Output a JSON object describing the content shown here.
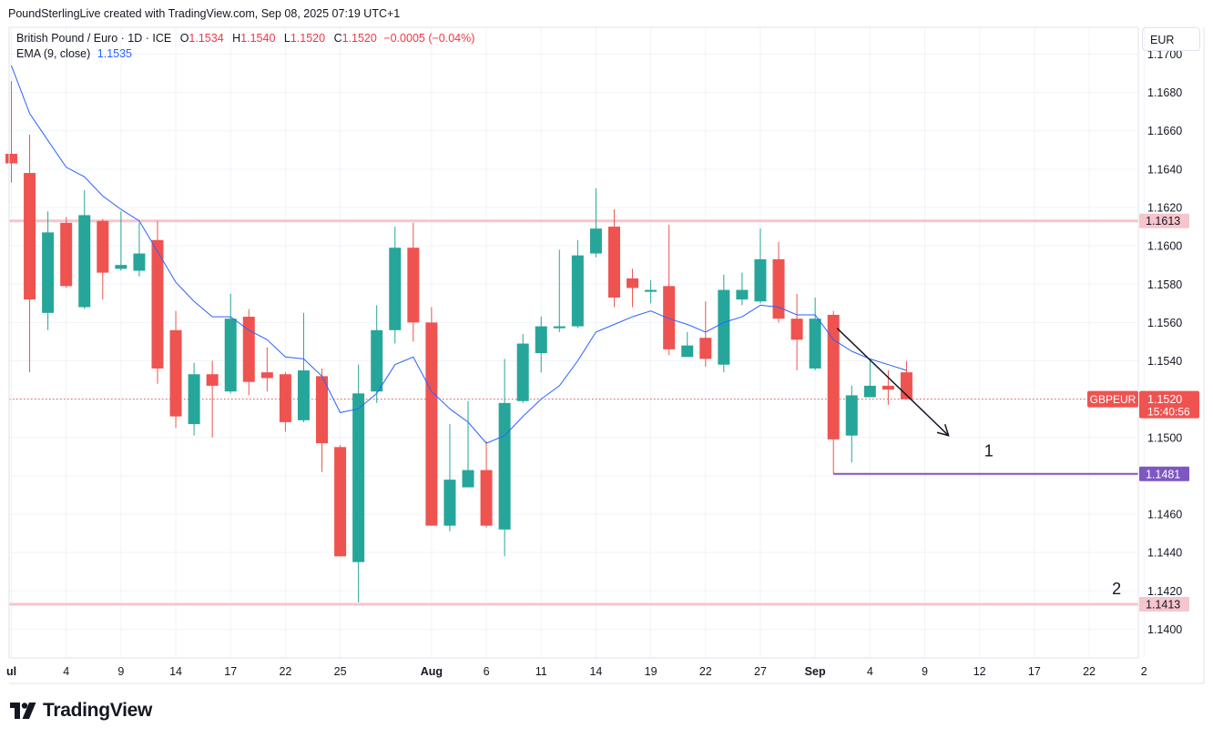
{
  "header": {
    "credit": "PoundSterlingLive created with TradingView.com, Sep 08, 2025 07:19 UTC+1",
    "symbol_desc": "British Pound / Euro · 1D · ICE",
    "ohlc": {
      "o_label": "O",
      "o": "1.1534",
      "h_label": "H",
      "h": "1.1540",
      "l_label": "L",
      "l": "1.1520",
      "c_label": "C",
      "c": "1.1520",
      "change": "−0.0005 (−0.04%)"
    },
    "indicator_label": "EMA (9, close)",
    "indicator_value": "1.1535",
    "currency": "EUR"
  },
  "logo": {
    "text": "TradingView"
  },
  "colors": {
    "up": "#26a69a",
    "down": "#ef5350",
    "ema": "#2962ff",
    "resistance": "#f7c5cc",
    "support_line": "#7e57c2",
    "grid": "#f0f3fa",
    "axis_text": "#131722"
  },
  "chart_data": {
    "type": "candlestick",
    "y_range": [
      1.1385,
      1.1714
    ],
    "y_ticks": [
      "1.1700",
      "1.1680",
      "1.1660",
      "1.1640",
      "1.1620",
      "1.1600",
      "1.1580",
      "1.1560",
      "1.1540",
      "1.1520",
      "1.1500",
      "1.1480",
      "1.1460",
      "1.1440",
      "1.1420",
      "1.1400"
    ],
    "x_ticks": [
      {
        "index": 0,
        "label": "ul",
        "bold": true
      },
      {
        "index": 3,
        "label": "4"
      },
      {
        "index": 6,
        "label": "9"
      },
      {
        "index": 9,
        "label": "14"
      },
      {
        "index": 12,
        "label": "17"
      },
      {
        "index": 15,
        "label": "22"
      },
      {
        "index": 18,
        "label": "25"
      },
      {
        "index": 23,
        "label": "Aug",
        "bold": true
      },
      {
        "index": 26,
        "label": "6"
      },
      {
        "index": 29,
        "label": "11"
      },
      {
        "index": 32,
        "label": "14"
      },
      {
        "index": 35,
        "label": "19"
      },
      {
        "index": 38,
        "label": "22"
      },
      {
        "index": 41,
        "label": "27"
      },
      {
        "index": 44,
        "label": "Sep",
        "bold": true
      },
      {
        "index": 47,
        "label": "4"
      },
      {
        "index": 50,
        "label": "9"
      },
      {
        "index": 53,
        "label": "12"
      },
      {
        "index": 56,
        "label": "17"
      },
      {
        "index": 59,
        "label": "22"
      },
      {
        "index": 62,
        "label": "2"
      }
    ],
    "candles": [
      {
        "o": 1.1648,
        "h": 1.1686,
        "l": 1.1633,
        "c": 1.1643
      },
      {
        "o": 1.1638,
        "h": 1.1658,
        "l": 1.1534,
        "c": 1.1572
      },
      {
        "o": 1.1565,
        "h": 1.1618,
        "l": 1.1556,
        "c": 1.1607
      },
      {
        "o": 1.1612,
        "h": 1.1615,
        "l": 1.1578,
        "c": 1.1579
      },
      {
        "o": 1.1568,
        "h": 1.1629,
        "l": 1.1567,
        "c": 1.1616
      },
      {
        "o": 1.1613,
        "h": 1.1614,
        "l": 1.1572,
        "c": 1.1586
      },
      {
        "o": 1.1588,
        "h": 1.1618,
        "l": 1.1587,
        "c": 1.159
      },
      {
        "o": 1.1587,
        "h": 1.1612,
        "l": 1.1584,
        "c": 1.1596
      },
      {
        "o": 1.1603,
        "h": 1.1613,
        "l": 1.1528,
        "c": 1.1536
      },
      {
        "o": 1.1556,
        "h": 1.1566,
        "l": 1.1505,
        "c": 1.1511
      },
      {
        "o": 1.1507,
        "h": 1.1539,
        "l": 1.1501,
        "c": 1.1533
      },
      {
        "o": 1.1533,
        "h": 1.154,
        "l": 1.15,
        "c": 1.1527
      },
      {
        "o": 1.1524,
        "h": 1.1575,
        "l": 1.1523,
        "c": 1.1562
      },
      {
        "o": 1.1563,
        "h": 1.1567,
        "l": 1.1522,
        "c": 1.1529
      },
      {
        "o": 1.1534,
        "h": 1.1547,
        "l": 1.1524,
        "c": 1.1531
      },
      {
        "o": 1.1533,
        "h": 1.1534,
        "l": 1.1503,
        "c": 1.1508
      },
      {
        "o": 1.1509,
        "h": 1.1565,
        "l": 1.1508,
        "c": 1.1535
      },
      {
        "o": 1.1532,
        "h": 1.1536,
        "l": 1.1482,
        "c": 1.1497
      },
      {
        "o": 1.1495,
        "h": 1.1496,
        "l": 1.1438,
        "c": 1.1438
      },
      {
        "o": 1.1435,
        "h": 1.1538,
        "l": 1.1414,
        "c": 1.1523
      },
      {
        "o": 1.1524,
        "h": 1.1569,
        "l": 1.1518,
        "c": 1.1556
      },
      {
        "o": 1.1556,
        "h": 1.161,
        "l": 1.1549,
        "c": 1.1599
      },
      {
        "o": 1.1599,
        "h": 1.1612,
        "l": 1.155,
        "c": 1.156
      },
      {
        "o": 1.156,
        "h": 1.1568,
        "l": 1.1454,
        "c": 1.1454
      },
      {
        "o": 1.1454,
        "h": 1.1507,
        "l": 1.1451,
        "c": 1.1478
      },
      {
        "o": 1.1474,
        "h": 1.1519,
        "l": 1.1474,
        "c": 1.1483
      },
      {
        "o": 1.1483,
        "h": 1.1498,
        "l": 1.1453,
        "c": 1.1454
      },
      {
        "o": 1.1452,
        "h": 1.1541,
        "l": 1.1438,
        "c": 1.1518
      },
      {
        "o": 1.1519,
        "h": 1.1554,
        "l": 1.1518,
        "c": 1.1549
      },
      {
        "o": 1.1544,
        "h": 1.1563,
        "l": 1.1534,
        "c": 1.1558
      },
      {
        "o": 1.1557,
        "h": 1.1598,
        "l": 1.1555,
        "c": 1.1558
      },
      {
        "o": 1.1558,
        "h": 1.1603,
        "l": 1.1557,
        "c": 1.1595
      },
      {
        "o": 1.1596,
        "h": 1.163,
        "l": 1.1594,
        "c": 1.1609
      },
      {
        "o": 1.161,
        "h": 1.1619,
        "l": 1.1568,
        "c": 1.1573
      },
      {
        "o": 1.1583,
        "h": 1.1588,
        "l": 1.1568,
        "c": 1.1578
      },
      {
        "o": 1.1576,
        "h": 1.1582,
        "l": 1.157,
        "c": 1.1577
      },
      {
        "o": 1.1579,
        "h": 1.1611,
        "l": 1.1543,
        "c": 1.1546
      },
      {
        "o": 1.1542,
        "h": 1.1555,
        "l": 1.1542,
        "c": 1.1548
      },
      {
        "o": 1.1552,
        "h": 1.1571,
        "l": 1.1537,
        "c": 1.1541
      },
      {
        "o": 1.1538,
        "h": 1.1585,
        "l": 1.1534,
        "c": 1.1577
      },
      {
        "o": 1.1572,
        "h": 1.1586,
        "l": 1.1569,
        "c": 1.1577
      },
      {
        "o": 1.1571,
        "h": 1.1609,
        "l": 1.157,
        "c": 1.1593
      },
      {
        "o": 1.1593,
        "h": 1.1602,
        "l": 1.156,
        "c": 1.1562
      },
      {
        "o": 1.1562,
        "h": 1.1575,
        "l": 1.1535,
        "c": 1.1551
      },
      {
        "o": 1.1536,
        "h": 1.1573,
        "l": 1.1535,
        "c": 1.1562
      },
      {
        "o": 1.1564,
        "h": 1.1566,
        "l": 1.1481,
        "c": 1.1499
      },
      {
        "o": 1.1501,
        "h": 1.1527,
        "l": 1.1487,
        "c": 1.1522
      },
      {
        "o": 1.1521,
        "h": 1.1541,
        "l": 1.1521,
        "c": 1.1527
      },
      {
        "o": 1.1527,
        "h": 1.1535,
        "l": 1.1517,
        "c": 1.1525
      },
      {
        "o": 1.1534,
        "h": 1.154,
        "l": 1.152,
        "c": 1.152
      }
    ],
    "ema": [
      1.1694,
      1.1669,
      1.1655,
      1.1641,
      1.1636,
      1.1626,
      1.1619,
      1.1613,
      1.1597,
      1.1581,
      1.1571,
      1.1563,
      1.1563,
      1.1556,
      1.1551,
      1.1542,
      1.1541,
      1.1532,
      1.1513,
      1.1515,
      1.1523,
      1.1538,
      1.1542,
      1.1524,
      1.1515,
      1.1508,
      1.1497,
      1.1501,
      1.1511,
      1.152,
      1.1527,
      1.154,
      1.1555,
      1.1559,
      1.1563,
      1.1566,
      1.1562,
      1.1559,
      1.1555,
      1.156,
      1.1563,
      1.1569,
      1.1568,
      1.1564,
      1.1564,
      1.1551,
      1.1545,
      1.1541,
      1.1538,
      1.1535
    ],
    "horizontal_lines": [
      {
        "price": 1.1613,
        "label": "1.1613",
        "type": "resistance"
      },
      {
        "price": 1.1413,
        "label": "1.1413",
        "type": "resistance"
      }
    ],
    "support_marker": {
      "price": 1.1481,
      "label": "1.1481",
      "from_index": 45
    },
    "current_price": {
      "symbol": "GBPEUR",
      "price": 1.152,
      "label": "1.1520",
      "countdown": "15:40:56"
    },
    "projection_arrow": {
      "from": {
        "index": 45.2,
        "price": 1.1557
      },
      "to": {
        "index": 51.3,
        "price": 1.1501
      }
    },
    "annotations": [
      {
        "text": "1",
        "index": 53.5,
        "price": 1.1493
      },
      {
        "text": "2",
        "index": 60.5,
        "price": 1.1421
      }
    ]
  }
}
